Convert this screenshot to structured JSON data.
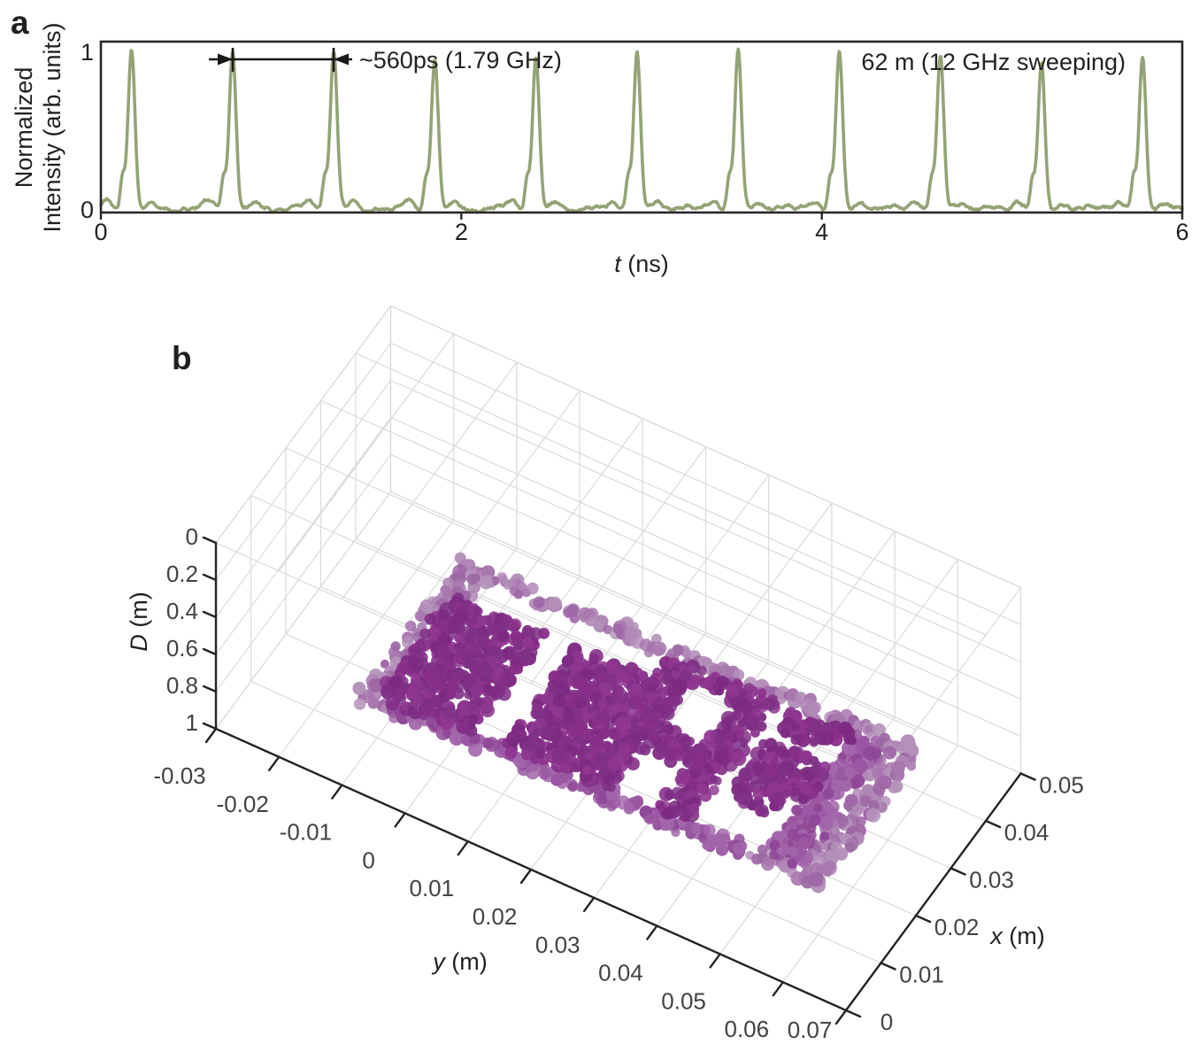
{
  "figure": {
    "panel_a": {
      "label": "a",
      "ylabel_line1": "Normalized",
      "ylabel_line2": "Intensity (arb. units)",
      "xlabel_var": "t",
      "xlabel_unit": " (ns)",
      "yticks": [
        "1",
        "0"
      ],
      "xticks": [
        "0",
        "2",
        "4",
        "6"
      ],
      "annotation": "~560ps (1.79 GHz)",
      "note": "62 m (12 GHz sweeping)",
      "trace_color": "#94a376",
      "axis_color": "#2a2526"
    },
    "panel_b": {
      "label": "b",
      "zlabel_var": "D",
      "zlabel_unit": " (m)",
      "ylabel_var": "y",
      "ylabel_unit": " (m)",
      "xlabel_var": "x",
      "xlabel_unit": " (m)",
      "d_ticks": [
        "0",
        "0.2",
        "0.4",
        "0.6",
        "0.8",
        "1"
      ],
      "y_ticks": [
        "-0.03",
        "-0.02",
        "-0.01",
        "0",
        "0.01",
        "0.02",
        "0.03",
        "0.04",
        "0.05",
        "0.06",
        "0.07"
      ],
      "x_ticks": [
        "0",
        "0.01",
        "0.02",
        "0.03",
        "0.04",
        "0.05"
      ],
      "grid_color": "#dadada",
      "axis_color": "#262122",
      "point_palette_light": [
        "#b088b6",
        "#a877ae",
        "#9e68a6",
        "#b492ba"
      ],
      "point_palette_medium": [
        "#9a57a2",
        "#8f4897",
        "#a266aa"
      ],
      "point_palette_dark": [
        "#7c2a82",
        "#862e88",
        "#8e3690",
        "#7f3186"
      ]
    }
  },
  "chart_data": [
    {
      "type": "line",
      "title": "Pulse train of frequency-swept source",
      "xlabel": "t (ns)",
      "ylabel": "Normalized Intensity (arb. units)",
      "xlim": [
        0,
        6
      ],
      "ylim": [
        0,
        1
      ],
      "x_ticks": [
        0,
        2,
        4,
        6
      ],
      "y_ticks": [
        0,
        1
      ],
      "grid": false,
      "legend": "none",
      "series_name": "normalized intensity",
      "peak_times_ns": [
        0.17,
        0.731,
        1.292,
        1.853,
        2.414,
        2.975,
        3.536,
        4.097,
        4.658,
        5.219,
        5.78
      ],
      "peak_heights": [
        0.95,
        0.93,
        0.93,
        0.88,
        0.89,
        0.92,
        0.94,
        0.92,
        0.9,
        0.86,
        0.89
      ],
      "pulse_period_ps": 560,
      "repetition_rate_GHz": 1.79,
      "annotation_span_ns": [
        0.731,
        1.292
      ],
      "annotation_text": "~560ps (1.79 GHz)",
      "note_text": "62 m (12 GHz sweeping)"
    },
    {
      "type": "scatter",
      "projection": "3d",
      "title": "3D point cloud of THU stencil target",
      "xlabel": "x (m)",
      "ylabel": "y (m)",
      "zlabel": "D (m)",
      "xlim": [
        0,
        0.05
      ],
      "ylim": [
        -0.03,
        0.07
      ],
      "zlim": [
        0,
        1
      ],
      "z_direction": "reversed (0 at top, 1 at bottom)",
      "grid": true,
      "marker": "filled circle, purple shades by depth/density",
      "pattern_note": "points form a tilted rectangular plate with THU stencil pattern; . = hole (no points), o = plate edge (light), m = medium, X = dense dark",
      "pattern_rows": [
        "oooooooooooooooooooooooooooooo",
        "oo............XXXXXXX.XXXXmmoo",
        "oo............XX...XX.XXX.mmoo",
        "oXXXXXX..XXXXXXX...XX.....mmoo",
        "oXXXXXX..XXXXXXX...XX.XXXXmmoo",
        "oXXXXXX..XXXXXXX...XX.XXXXmmoo",
        "oXXXXXX..XXXXXXXXXXXX.XXXXmmoo",
        "oXXXXXX..XXXXXXXXXXXX.XXX.mmoo",
        "oXXXXXX..XXXXXXX...XX.XXX.mmoo",
        "oXXXXXX..XXXXXXX...XX.....mmoo",
        "oXXXXXX..XXXXXXX...XX.....mmoo",
        "oXXXXXX..XXXXXXX...XX.....mmoo",
        "oommmmmmmmmmmmmmmmmmmmmmmooooo"
      ],
      "plate_extent": {
        "u_cells": 30,
        "v_cells": 13
      }
    }
  ]
}
